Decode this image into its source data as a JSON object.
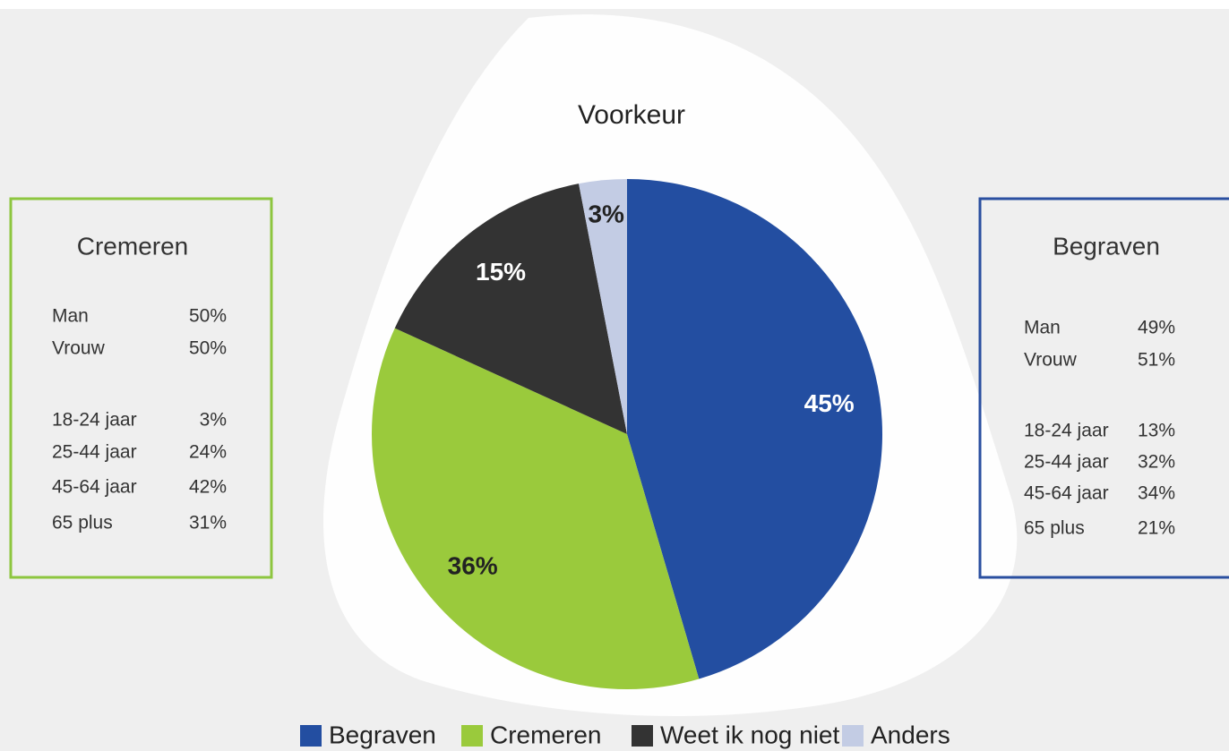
{
  "chart_data": {
    "type": "pie",
    "title": "Voorkeur",
    "categories": [
      "Begraven",
      "Cremeren",
      "Weet ik nog niet",
      "Anders"
    ],
    "values": [
      45,
      36,
      15,
      3
    ],
    "value_labels": [
      "45%",
      "36%",
      "15%",
      "3%"
    ],
    "colors": [
      "#234ea1",
      "#9aca3c",
      "#333333",
      "#c3cce4"
    ],
    "legend": "bottom"
  },
  "panels": [
    {
      "title": "Cremeren",
      "color": "#8dc63f",
      "groups": [
        [
          [
            "Man",
            "50%"
          ],
          [
            "Vrouw",
            "50%"
          ]
        ],
        [
          [
            "18-24 jaar",
            "3%"
          ],
          [
            "25-44 jaar",
            "24%"
          ],
          [
            "45-64 jaar",
            "42%"
          ],
          [
            "65 plus",
            "31%"
          ]
        ]
      ]
    },
    {
      "title": "Begraven",
      "color": "#2a4fa0",
      "groups": [
        [
          [
            "Man",
            "49%"
          ],
          [
            "Vrouw",
            "51%"
          ]
        ],
        [
          [
            "18-24 jaar",
            "13%"
          ],
          [
            "25-44 jaar",
            "32%"
          ],
          [
            "45-64 jaar",
            "34%"
          ],
          [
            "65 plus",
            "21%"
          ]
        ]
      ]
    }
  ]
}
